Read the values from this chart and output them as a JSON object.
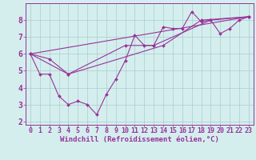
{
  "bg_color": "#d4eeee",
  "grid_color": "#aacccc",
  "line_color": "#993399",
  "marker_color": "#993399",
  "xlabel": "Windchill (Refroidissement éolien,°C)",
  "xlabel_color": "#993399",
  "xlabel_fontsize": 6.5,
  "tick_fontsize": 6,
  "ytick_fontsize": 7,
  "ylim": [
    1.8,
    9.0
  ],
  "xlim": [
    -0.5,
    23.5
  ],
  "yticks": [
    2,
    3,
    4,
    5,
    6,
    7,
    8
  ],
  "xticks": [
    0,
    1,
    2,
    3,
    4,
    5,
    6,
    7,
    8,
    9,
    10,
    11,
    12,
    13,
    14,
    15,
    16,
    17,
    18,
    19,
    20,
    21,
    22,
    23
  ],
  "series": [
    [
      6.0,
      4.8,
      4.8,
      3.5,
      3.0,
      3.2,
      3.0,
      2.4,
      3.6,
      4.5,
      5.6,
      7.1,
      6.5,
      6.5,
      7.6,
      7.5,
      7.5,
      8.5,
      7.9,
      8.0,
      7.2,
      7.5,
      8.0,
      8.2
    ],
    [
      6.0,
      null,
      null,
      null,
      null,
      null,
      null,
      null,
      null,
      null,
      null,
      null,
      null,
      null,
      null,
      null,
      null,
      null,
      null,
      null,
      null,
      null,
      null,
      8.2
    ],
    [
      6.0,
      null,
      null,
      null,
      4.8,
      null,
      null,
      null,
      null,
      null,
      null,
      null,
      null,
      null,
      6.5,
      null,
      null,
      null,
      8.0,
      null,
      null,
      null,
      null,
      8.2
    ],
    [
      6.0,
      null,
      5.7,
      null,
      4.8,
      null,
      null,
      null,
      null,
      null,
      6.5,
      null,
      null,
      6.5,
      null,
      null,
      null,
      null,
      null,
      8.0,
      null,
      null,
      null,
      8.2
    ]
  ]
}
